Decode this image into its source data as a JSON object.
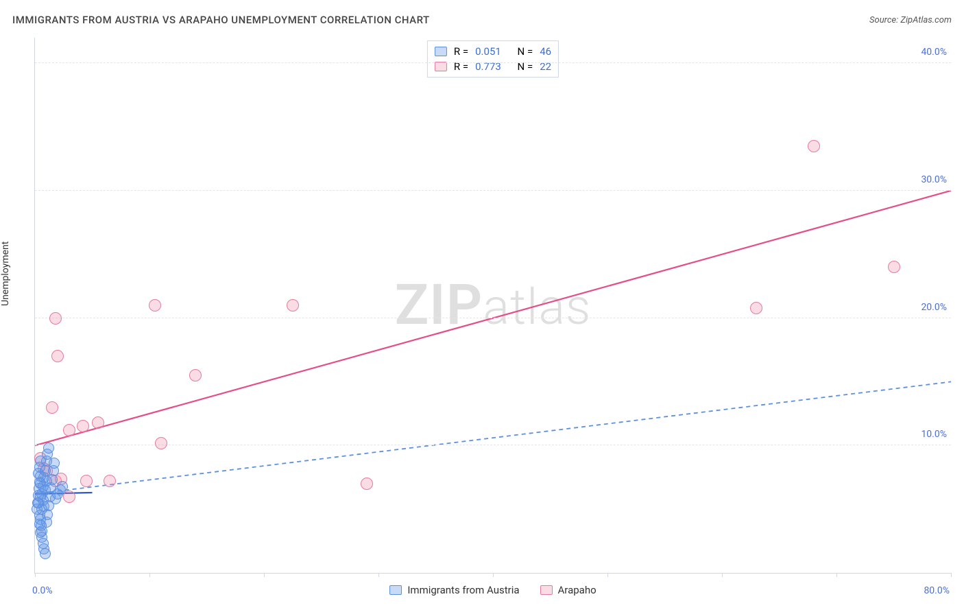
{
  "title": "IMMIGRANTS FROM AUSTRIA VS ARAPAHO UNEMPLOYMENT CORRELATION CHART",
  "source_label": "Source: ZipAtlas.com",
  "ylabel": "Unemployment",
  "watermark": {
    "zip": "ZIP",
    "atlas": "atlas"
  },
  "chart": {
    "type": "scatter",
    "background_color": "#ffffff",
    "grid_color": "#e2e6ec",
    "axis_border_color": "#cfd8e3",
    "xlim": [
      0,
      80
    ],
    "ylim": [
      0,
      42
    ],
    "x_ticks": [
      0,
      10,
      20,
      30,
      40,
      50,
      60,
      70,
      80
    ],
    "x_tick_labels": {
      "0": "0.0%",
      "80": "80.0%"
    },
    "y_ticks": [
      10,
      20,
      30,
      40
    ],
    "y_tick_labels": {
      "10": "10.0%",
      "20": "20.0%",
      "30": "30.0%",
      "40": "40.0%"
    },
    "tick_label_color": "#4a6fd8",
    "tick_label_fontsize": 14
  },
  "series": {
    "blue": {
      "label": "Immigrants from Austria",
      "marker_fill": "rgba(96,150,230,0.35)",
      "marker_stroke": "#5b8fe0",
      "marker_radius": 7,
      "R": "0.051",
      "N": "46",
      "trendline": {
        "x1": 0,
        "y1": 6.2,
        "x2": 80,
        "y2": 15.0,
        "stroke": "#5b8fe0",
        "stroke_width": 1.8,
        "dash": "6,5"
      },
      "short_trend": {
        "x1": 0,
        "y1": 6.2,
        "x2": 5,
        "y2": 6.3,
        "stroke": "#2a56c6",
        "stroke_width": 2.2
      },
      "points": [
        {
          "x": 0.3,
          "y": 5.5
        },
        {
          "x": 0.5,
          "y": 6.0
        },
        {
          "x": 0.7,
          "y": 6.8
        },
        {
          "x": 0.8,
          "y": 7.5
        },
        {
          "x": 0.4,
          "y": 4.5
        },
        {
          "x": 0.6,
          "y": 5.0
        },
        {
          "x": 0.9,
          "y": 8.0
        },
        {
          "x": 1.0,
          "y": 8.8
        },
        {
          "x": 1.1,
          "y": 9.3
        },
        {
          "x": 1.2,
          "y": 9.8
        },
        {
          "x": 0.5,
          "y": 7.0
        },
        {
          "x": 0.6,
          "y": 6.2
        },
        {
          "x": 0.7,
          "y": 5.7
        },
        {
          "x": 0.8,
          "y": 5.2
        },
        {
          "x": 0.9,
          "y": 6.5
        },
        {
          "x": 1.0,
          "y": 7.2
        },
        {
          "x": 0.4,
          "y": 3.8
        },
        {
          "x": 0.5,
          "y": 3.2
        },
        {
          "x": 0.6,
          "y": 2.8
        },
        {
          "x": 0.7,
          "y": 2.3
        },
        {
          "x": 0.8,
          "y": 1.9
        },
        {
          "x": 0.9,
          "y": 1.5
        },
        {
          "x": 1.0,
          "y": 4.0
        },
        {
          "x": 1.1,
          "y": 4.6
        },
        {
          "x": 1.2,
          "y": 5.3
        },
        {
          "x": 1.3,
          "y": 6.0
        },
        {
          "x": 1.4,
          "y": 6.7
        },
        {
          "x": 1.5,
          "y": 7.3
        },
        {
          "x": 1.6,
          "y": 8.0
        },
        {
          "x": 1.7,
          "y": 8.6
        },
        {
          "x": 0.3,
          "y": 7.8
        },
        {
          "x": 0.4,
          "y": 8.3
        },
        {
          "x": 0.5,
          "y": 8.8
        },
        {
          "x": 0.2,
          "y": 5.0
        },
        {
          "x": 0.25,
          "y": 5.5
        },
        {
          "x": 0.3,
          "y": 6.1
        },
        {
          "x": 0.35,
          "y": 6.6
        },
        {
          "x": 0.4,
          "y": 7.1
        },
        {
          "x": 0.45,
          "y": 7.6
        },
        {
          "x": 0.5,
          "y": 4.2
        },
        {
          "x": 0.55,
          "y": 3.7
        },
        {
          "x": 0.6,
          "y": 3.3
        },
        {
          "x": 1.8,
          "y": 5.8
        },
        {
          "x": 2.0,
          "y": 6.2
        },
        {
          "x": 2.2,
          "y": 6.5
        },
        {
          "x": 2.4,
          "y": 6.8
        }
      ]
    },
    "pink": {
      "label": "Arapaho",
      "marker_fill": "rgba(240,140,170,0.30)",
      "marker_stroke": "#e77aa0",
      "marker_radius": 8,
      "R": "0.773",
      "N": "22",
      "trendline": {
        "x1": 0,
        "y1": 10.0,
        "x2": 80,
        "y2": 30.0,
        "stroke": "#e64d87",
        "stroke_width": 2.2,
        "dash": null
      },
      "points": [
        {
          "x": 0.8,
          "y": 8.2
        },
        {
          "x": 1.0,
          "y": 8.0
        },
        {
          "x": 1.8,
          "y": 7.2
        },
        {
          "x": 2.3,
          "y": 7.4
        },
        {
          "x": 3.0,
          "y": 6.0
        },
        {
          "x": 4.5,
          "y": 7.2
        },
        {
          "x": 6.5,
          "y": 7.2
        },
        {
          "x": 29.0,
          "y": 7.0
        },
        {
          "x": 1.5,
          "y": 13.0
        },
        {
          "x": 3.0,
          "y": 11.2
        },
        {
          "x": 4.2,
          "y": 11.5
        },
        {
          "x": 5.5,
          "y": 11.8
        },
        {
          "x": 11.0,
          "y": 10.2
        },
        {
          "x": 2.0,
          "y": 17.0
        },
        {
          "x": 14.0,
          "y": 15.5
        },
        {
          "x": 1.8,
          "y": 20.0
        },
        {
          "x": 10.5,
          "y": 21.0
        },
        {
          "x": 22.5,
          "y": 21.0
        },
        {
          "x": 63.0,
          "y": 20.8
        },
        {
          "x": 75.0,
          "y": 24.0
        },
        {
          "x": 68.0,
          "y": 33.5
        },
        {
          "x": 0.5,
          "y": 9.0
        }
      ]
    }
  },
  "stats_legend": {
    "r_label": "R =",
    "n_label": "N ="
  },
  "series_legend_order": [
    "blue",
    "pink"
  ]
}
